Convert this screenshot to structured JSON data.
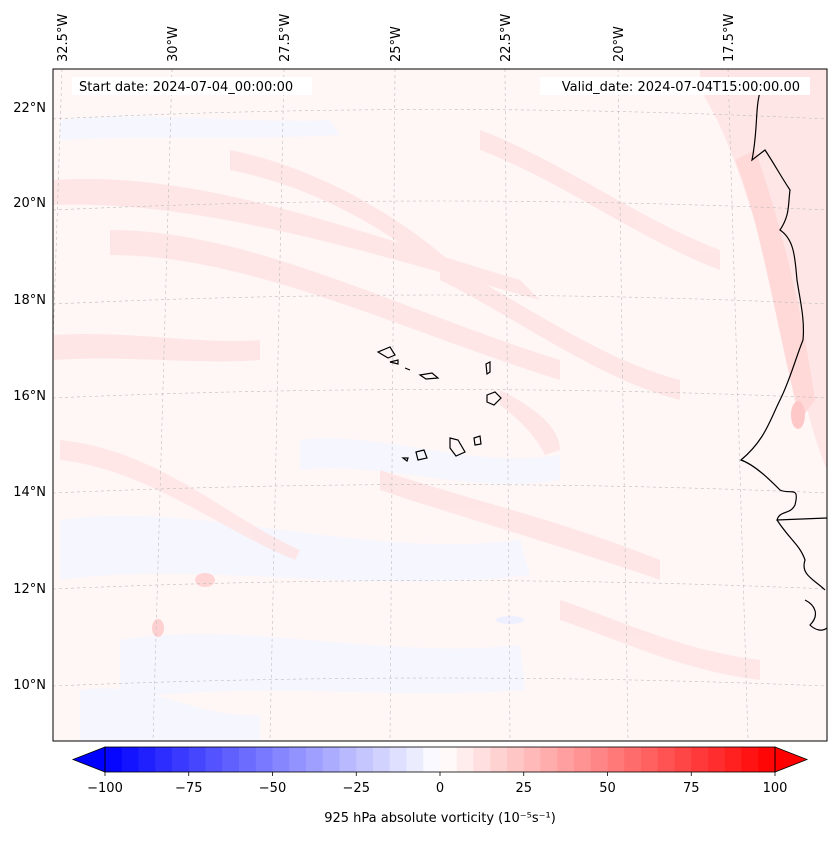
{
  "map": {
    "start_date": "Start date: 2024-07-04_00:00:00",
    "valid_date": "Valid_date: 2024-07-04T15:00:00.00",
    "lon_labels": [
      "32.5°W",
      "30°W",
      "27.5°W",
      "25°W",
      "22.5°W",
      "20°W",
      "17.5°W"
    ],
    "lat_labels": [
      "22°N",
      "20°N",
      "18°N",
      "16°N",
      "14°N",
      "12°N",
      "10°N"
    ]
  },
  "colorbar": {
    "label": "925 hPa absolute vorticity (10⁻⁵s⁻¹)",
    "ticks": [
      "−100",
      "−75",
      "−50",
      "−25",
      "0",
      "25",
      "50",
      "75",
      "100"
    ],
    "range": [
      -100,
      100
    ],
    "levels": 40,
    "negative_color": "#0000ff",
    "positive_color": "#ff0000"
  }
}
